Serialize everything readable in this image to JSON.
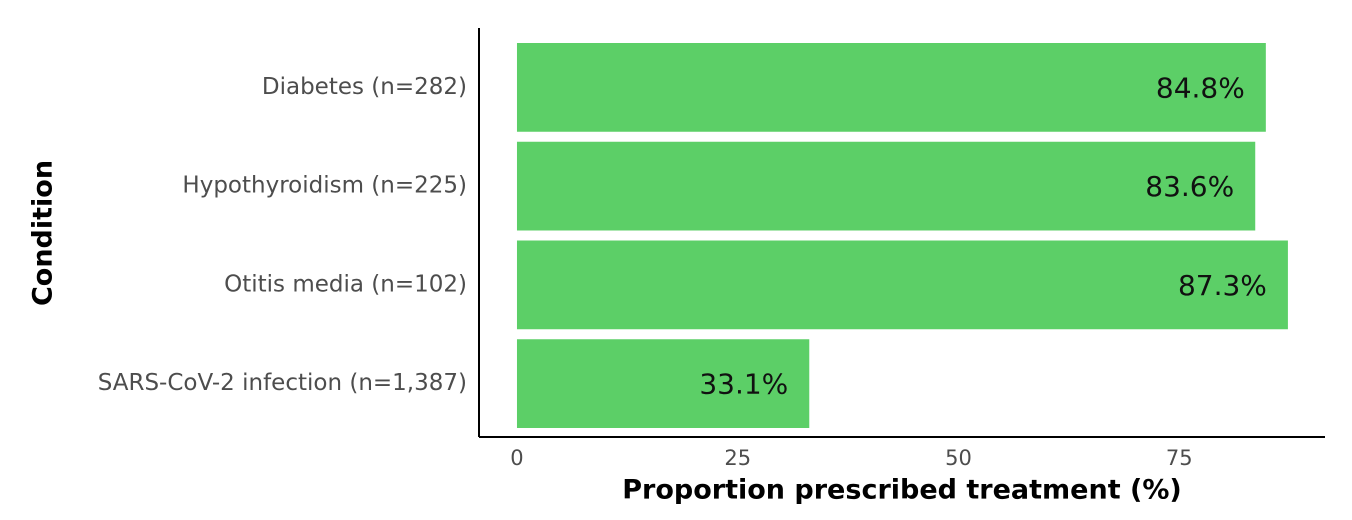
{
  "chart_data": {
    "type": "bar",
    "orientation": "horizontal",
    "x_label": "Proportion prescribed treatment (%)",
    "y_label": "Condition",
    "categories": [
      "Diabetes (n=282)",
      "Hypothyroidism (n=225)",
      "Otitis media (n=102)",
      "SARS-CoV-2 infection (n=1,387)"
    ],
    "values": [
      84.8,
      83.6,
      87.3,
      33.1
    ],
    "value_labels": [
      "84.8%",
      "83.6%",
      "87.3%",
      "33.1%"
    ],
    "color": "#5ccf67",
    "xlim": [
      -4.3,
      91.5
    ],
    "xticks": [
      0,
      25,
      50,
      75
    ],
    "grid": false
  }
}
